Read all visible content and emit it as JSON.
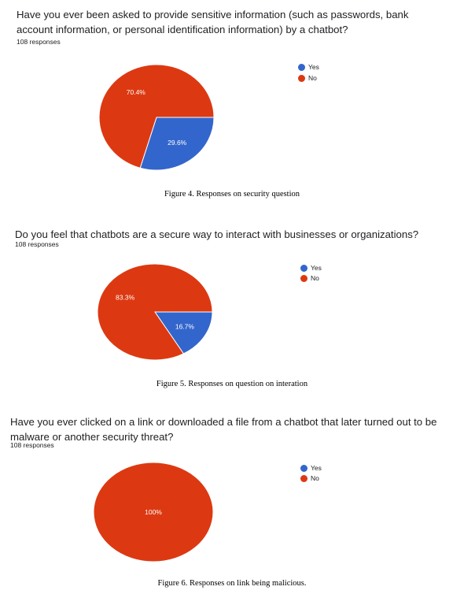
{
  "colors": {
    "yes": "#3366cc",
    "no": "#dc3912"
  },
  "figures": [
    {
      "question": "Have you ever been asked to provide sensitive information (such as passwords, bank account information, or personal identification information) by a chatbot?",
      "responses": "108 responses",
      "caption": "Figure 4. Responses on security question"
    },
    {
      "question": "Do you feel that chatbots are a secure way to interact with businesses or organizations?",
      "responses": "108 responses",
      "caption": "Figure 5. Responses on question on interation"
    },
    {
      "question": "Have you ever clicked on a link or downloaded a file from a chatbot that later turned out to be malware or another security threat?",
      "responses": "108 responses",
      "caption": "Figure 6. Responses on link being malicious."
    }
  ],
  "chart_data": [
    {
      "type": "pie",
      "title": "Have you ever been asked to provide sensitive information (such as passwords, bank account information, or personal identification information) by a chatbot?",
      "legend_position": "right",
      "slices": [
        {
          "label": "Yes",
          "value": 29.6,
          "display": "29.6%",
          "color": "#3366cc"
        },
        {
          "label": "No",
          "value": 70.4,
          "display": "70.4%",
          "color": "#dc3912"
        }
      ]
    },
    {
      "type": "pie",
      "title": "Do you feel that chatbots are a secure way to interact with businesses or organizations?",
      "legend_position": "right",
      "slices": [
        {
          "label": "Yes",
          "value": 16.7,
          "display": "16.7%",
          "color": "#3366cc"
        },
        {
          "label": "No",
          "value": 83.3,
          "display": "83.3%",
          "color": "#dc3912"
        }
      ]
    },
    {
      "type": "pie",
      "title": "Have you ever clicked on a link or downloaded a file from a chatbot that later turned out to be malware or another security threat?",
      "legend_position": "right",
      "slices": [
        {
          "label": "Yes",
          "value": 0,
          "display": "",
          "color": "#3366cc"
        },
        {
          "label": "No",
          "value": 100,
          "display": "100%",
          "color": "#dc3912"
        }
      ]
    }
  ]
}
